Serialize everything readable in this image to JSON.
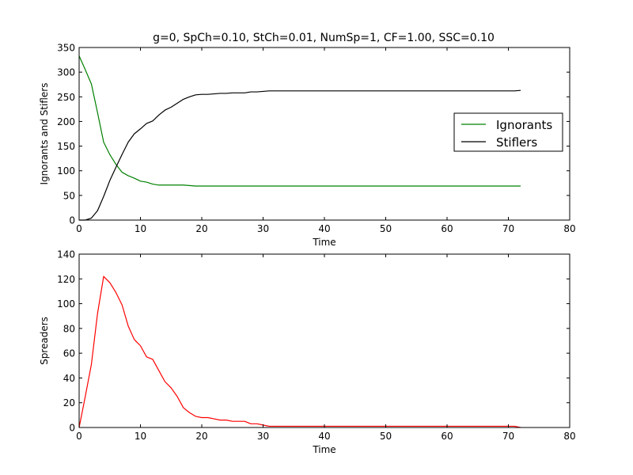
{
  "figure": {
    "title": "g=0, SpCh=0.10, StCh=0.01, NumSp=1, CF=1.00, SSC=0.10"
  },
  "chart_data": [
    {
      "type": "line",
      "title": "g=0, SpCh=0.10, StCh=0.01, NumSp=1, CF=1.00, SSC=0.10",
      "xlabel": "Time",
      "ylabel": "Ignorants and Stiflers",
      "xlim": [
        0,
        80
      ],
      "ylim": [
        0,
        350
      ],
      "xticks": [
        "0",
        "10",
        "20",
        "30",
        "40",
        "50",
        "60",
        "70",
        "80"
      ],
      "yticks": [
        "0",
        "50",
        "100",
        "150",
        "200",
        "250",
        "300",
        "350"
      ],
      "grid": false,
      "legend": "right",
      "x": [
        0,
        1,
        2,
        3,
        4,
        5,
        6,
        7,
        8,
        9,
        10,
        11,
        12,
        13,
        14,
        15,
        16,
        17,
        18,
        19,
        20,
        21,
        22,
        23,
        24,
        25,
        26,
        27,
        28,
        29,
        30,
        31,
        32,
        33,
        34,
        35,
        36,
        37,
        38,
        39,
        40,
        41,
        42,
        43,
        44,
        45,
        46,
        47,
        48,
        49,
        50,
        51,
        52,
        53,
        54,
        55,
        56,
        57,
        58,
        59,
        60,
        61,
        62,
        63,
        64,
        65,
        66,
        67,
        68,
        69,
        70,
        71,
        72
      ],
      "series": [
        {
          "name": "Ignorants",
          "color": "#008000",
          "values": [
            333,
            305,
            276,
            218,
            158,
            133,
            113,
            97,
            90,
            85,
            79,
            77,
            73,
            71,
            71,
            71,
            71,
            71,
            70,
            69,
            69,
            69,
            69,
            69,
            69,
            69,
            69,
            69,
            69,
            69,
            69,
            69,
            69,
            69,
            69,
            69,
            69,
            69,
            69,
            69,
            69,
            69,
            69,
            69,
            69,
            69,
            69,
            69,
            69,
            69,
            69,
            69,
            69,
            69,
            69,
            69,
            69,
            69,
            69,
            69,
            69,
            69,
            69,
            69,
            69,
            69,
            69,
            69,
            69,
            69,
            69,
            69,
            69
          ]
        },
        {
          "name": "Stiflers",
          "color": "#000000",
          "values": [
            0,
            0,
            4,
            19,
            48,
            80,
            107,
            133,
            158,
            175,
            185,
            196,
            201,
            213,
            223,
            229,
            237,
            245,
            250,
            254,
            255,
            255,
            256,
            257,
            257,
            258,
            258,
            258,
            260,
            260,
            261,
            262,
            262,
            262,
            262,
            262,
            262,
            262,
            262,
            262,
            262,
            262,
            262,
            262,
            262,
            262,
            262,
            262,
            262,
            262,
            262,
            262,
            262,
            262,
            262,
            262,
            262,
            262,
            262,
            262,
            262,
            262,
            262,
            262,
            262,
            262,
            262,
            262,
            262,
            262,
            262,
            262,
            263
          ]
        }
      ]
    },
    {
      "type": "line",
      "xlabel": "Time",
      "ylabel": "Spreaders",
      "xlim": [
        0,
        80
      ],
      "ylim": [
        0,
        140
      ],
      "xticks": [
        "0",
        "10",
        "20",
        "30",
        "40",
        "50",
        "60",
        "70",
        "80"
      ],
      "yticks": [
        "0",
        "20",
        "40",
        "60",
        "80",
        "100",
        "120",
        "140"
      ],
      "grid": false,
      "x": [
        0,
        1,
        2,
        3,
        4,
        5,
        6,
        7,
        8,
        9,
        10,
        11,
        12,
        13,
        14,
        15,
        16,
        17,
        18,
        19,
        20,
        21,
        22,
        23,
        24,
        25,
        26,
        27,
        28,
        29,
        30,
        31,
        32,
        33,
        34,
        35,
        36,
        37,
        38,
        39,
        40,
        41,
        42,
        43,
        44,
        45,
        46,
        47,
        48,
        49,
        50,
        51,
        52,
        53,
        54,
        55,
        56,
        57,
        58,
        59,
        60,
        61,
        62,
        63,
        64,
        65,
        66,
        67,
        68,
        69,
        70,
        71,
        72
      ],
      "series": [
        {
          "color": "#ff0000",
          "values": [
            0,
            25,
            51,
            92,
            122,
            117,
            109,
            99,
            82,
            71,
            66,
            57,
            55,
            46,
            37,
            32,
            25,
            16,
            12,
            9,
            8,
            8,
            7,
            6,
            6,
            5,
            5,
            5,
            3,
            3,
            2,
            1,
            1,
            1,
            1,
            1,
            1,
            1,
            1,
            1,
            1,
            1,
            1,
            1,
            1,
            1,
            1,
            1,
            1,
            1,
            1,
            1,
            1,
            1,
            1,
            1,
            1,
            1,
            1,
            1,
            1,
            1,
            1,
            1,
            1,
            1,
            1,
            1,
            1,
            1,
            1,
            1,
            0
          ]
        }
      ]
    }
  ]
}
